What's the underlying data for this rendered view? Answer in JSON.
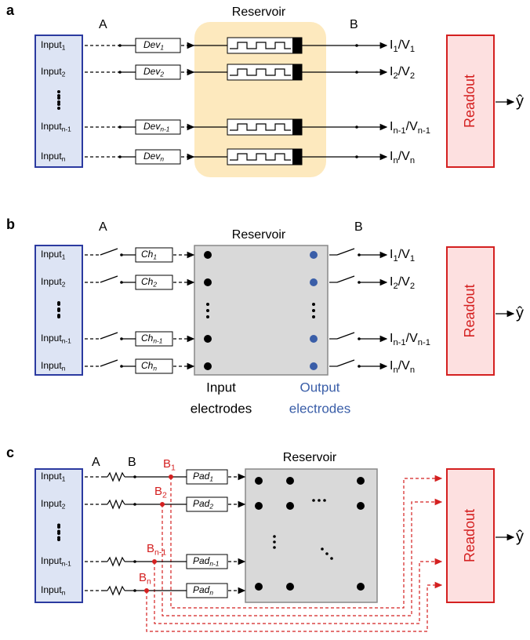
{
  "panel_a": {
    "label": "a",
    "point_a": "A",
    "point_b": "B",
    "reservoir": "Reservoir",
    "inputs": [
      [
        "Input",
        "1"
      ],
      [
        "Input",
        "2"
      ],
      [
        "Input",
        "n-1"
      ],
      [
        "Input",
        "n"
      ]
    ],
    "devices": [
      [
        "Dev",
        "1"
      ],
      [
        "Dev",
        "2"
      ],
      [
        "Dev",
        "n-1"
      ],
      [
        "Dev",
        "n"
      ]
    ],
    "outputs": [
      [
        "I",
        "1",
        "/V",
        "1"
      ],
      [
        "I",
        "2",
        "/V",
        "2"
      ],
      [
        "I",
        "n-1",
        "/V",
        "n-1"
      ],
      [
        "I",
        "n",
        "/V",
        "n"
      ]
    ],
    "readout": "Readout",
    "output": "ŷ"
  },
  "panel_b": {
    "label": "b",
    "point_a": "A",
    "point_b": "B",
    "reservoir": "Reservoir",
    "inputs": [
      [
        "Input",
        "1"
      ],
      [
        "Input",
        "2"
      ],
      [
        "Input",
        "n-1"
      ],
      [
        "Input",
        "n"
      ]
    ],
    "channels": [
      [
        "Ch",
        "1"
      ],
      [
        "Ch",
        "2"
      ],
      [
        "Ch",
        "n-1"
      ],
      [
        "Ch",
        "n"
      ]
    ],
    "outputs": [
      [
        "I",
        "1",
        "/V",
        "1"
      ],
      [
        "I",
        "2",
        "/V",
        "2"
      ],
      [
        "I",
        "n-1",
        "/V",
        "n-1"
      ],
      [
        "I",
        "n",
        "/V",
        "n"
      ]
    ],
    "input_electrodes": [
      "Input",
      "electrodes"
    ],
    "output_electrodes": [
      "Output",
      "electrodes"
    ],
    "readout": "Readout",
    "output": "ŷ"
  },
  "panel_c": {
    "label": "c",
    "point_a": "A",
    "point_b": "B",
    "reservoir": "Reservoir",
    "inputs": [
      [
        "Input",
        "1"
      ],
      [
        "Input",
        "2"
      ],
      [
        "Input",
        "n-1"
      ],
      [
        "Input",
        "n"
      ]
    ],
    "branch_labels": [
      [
        "B",
        "1"
      ],
      [
        "B",
        "2"
      ],
      [
        "B",
        "n-1"
      ],
      [
        "B",
        "n"
      ]
    ],
    "pads": [
      [
        "Pad",
        "1"
      ],
      [
        "Pad",
        "2"
      ],
      [
        "Pad",
        "n-1"
      ],
      [
        "Pad",
        "n"
      ]
    ],
    "readout": "Readout",
    "output": "ŷ"
  }
}
